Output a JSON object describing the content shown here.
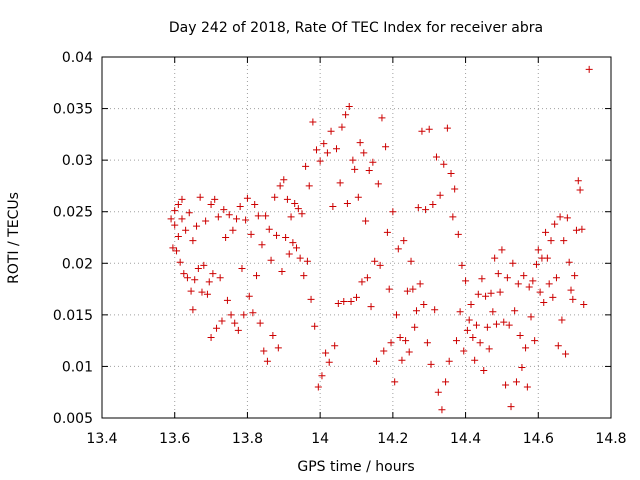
{
  "chart_data": {
    "type": "scatter",
    "title": "Day 242 of 2018, Rate Of TEC Index for receiver abra",
    "xlabel": "GPS time / hours",
    "ylabel": "ROTI / TECUs",
    "xlim": [
      13.4,
      14.8
    ],
    "ylim": [
      0.005,
      0.04
    ],
    "xticks": [
      13.4,
      13.6,
      13.8,
      14.0,
      14.2,
      14.4,
      14.6,
      14.8
    ],
    "xtick_labels": [
      "13.4",
      "13.6",
      "13.8",
      "14",
      "14.2",
      "14.4",
      "14.6",
      "14.8"
    ],
    "yticks": [
      0.005,
      0.01,
      0.015,
      0.02,
      0.025,
      0.03,
      0.035,
      0.04
    ],
    "ytick_labels": [
      "0.005",
      "0.01",
      "0.015",
      "0.02",
      "0.025",
      "0.03",
      "0.035",
      "0.04"
    ],
    "grid": true,
    "marker": "+",
    "color": "#cc0000",
    "series": [
      {
        "name": "abra",
        "points": [
          [
            13.59,
            0.0243
          ],
          [
            13.595,
            0.0215
          ],
          [
            13.6,
            0.0251
          ],
          [
            13.6,
            0.0237
          ],
          [
            13.605,
            0.0212
          ],
          [
            13.61,
            0.0257
          ],
          [
            13.61,
            0.0226
          ],
          [
            13.615,
            0.0201
          ],
          [
            13.62,
            0.0262
          ],
          [
            13.62,
            0.0243
          ],
          [
            13.625,
            0.019
          ],
          [
            13.63,
            0.0232
          ],
          [
            13.635,
            0.0186
          ],
          [
            13.64,
            0.0249
          ],
          [
            13.645,
            0.0173
          ],
          [
            13.65,
            0.0222
          ],
          [
            13.65,
            0.0155
          ],
          [
            13.655,
            0.0184
          ],
          [
            13.66,
            0.0236
          ],
          [
            13.665,
            0.0195
          ],
          [
            13.67,
            0.0264
          ],
          [
            13.675,
            0.0172
          ],
          [
            13.68,
            0.0198
          ],
          [
            13.685,
            0.0241
          ],
          [
            13.69,
            0.017
          ],
          [
            13.695,
            0.0182
          ],
          [
            13.7,
            0.0257
          ],
          [
            13.7,
            0.0128
          ],
          [
            13.705,
            0.019
          ],
          [
            13.71,
            0.0262
          ],
          [
            13.715,
            0.0137
          ],
          [
            13.72,
            0.0245
          ],
          [
            13.725,
            0.0186
          ],
          [
            13.73,
            0.0144
          ],
          [
            13.735,
            0.0252
          ],
          [
            13.74,
            0.0225
          ],
          [
            13.745,
            0.0164
          ],
          [
            13.75,
            0.0247
          ],
          [
            13.755,
            0.015
          ],
          [
            13.76,
            0.0232
          ],
          [
            13.765,
            0.0142
          ],
          [
            13.77,
            0.0243
          ],
          [
            13.775,
            0.0135
          ],
          [
            13.78,
            0.0255
          ],
          [
            13.785,
            0.0195
          ],
          [
            13.79,
            0.015
          ],
          [
            13.795,
            0.0242
          ],
          [
            13.8,
            0.0263
          ],
          [
            13.805,
            0.0168
          ],
          [
            13.81,
            0.0228
          ],
          [
            13.815,
            0.0152
          ],
          [
            13.82,
            0.0257
          ],
          [
            13.825,
            0.0188
          ],
          [
            13.83,
            0.0246
          ],
          [
            13.835,
            0.0142
          ],
          [
            13.84,
            0.0218
          ],
          [
            13.845,
            0.0115
          ],
          [
            13.85,
            0.0246
          ],
          [
            13.855,
            0.0105
          ],
          [
            13.86,
            0.0233
          ],
          [
            13.865,
            0.0203
          ],
          [
            13.87,
            0.013
          ],
          [
            13.875,
            0.0264
          ],
          [
            13.88,
            0.0227
          ],
          [
            13.885,
            0.0118
          ],
          [
            13.89,
            0.0275
          ],
          [
            13.895,
            0.0192
          ],
          [
            13.9,
            0.0281
          ],
          [
            13.905,
            0.0225
          ],
          [
            13.91,
            0.0262
          ],
          [
            13.915,
            0.0209
          ],
          [
            13.92,
            0.0245
          ],
          [
            13.925,
            0.022
          ],
          [
            13.93,
            0.0258
          ],
          [
            13.935,
            0.0215
          ],
          [
            13.94,
            0.0253
          ],
          [
            13.945,
            0.0205
          ],
          [
            13.95,
            0.0248
          ],
          [
            13.955,
            0.0188
          ],
          [
            13.96,
            0.0294
          ],
          [
            13.965,
            0.0202
          ],
          [
            13.97,
            0.0275
          ],
          [
            13.975,
            0.0165
          ],
          [
            13.98,
            0.0337
          ],
          [
            13.985,
            0.0139
          ],
          [
            13.99,
            0.031
          ],
          [
            13.995,
            0.008
          ],
          [
            14.0,
            0.0299
          ],
          [
            14.005,
            0.0091
          ],
          [
            14.01,
            0.0316
          ],
          [
            14.015,
            0.0113
          ],
          [
            14.02,
            0.0307
          ],
          [
            14.025,
            0.0104
          ],
          [
            14.03,
            0.0328
          ],
          [
            14.035,
            0.0255
          ],
          [
            14.04,
            0.012
          ],
          [
            14.045,
            0.0311
          ],
          [
            14.05,
            0.0161
          ],
          [
            14.055,
            0.0278
          ],
          [
            14.06,
            0.0332
          ],
          [
            14.065,
            0.0163
          ],
          [
            14.07,
            0.0344
          ],
          [
            14.075,
            0.0258
          ],
          [
            14.08,
            0.0352
          ],
          [
            14.085,
            0.0163
          ],
          [
            14.09,
            0.03
          ],
          [
            14.095,
            0.0291
          ],
          [
            14.1,
            0.0167
          ],
          [
            14.105,
            0.0264
          ],
          [
            14.11,
            0.0317
          ],
          [
            14.115,
            0.0182
          ],
          [
            14.12,
            0.0307
          ],
          [
            14.125,
            0.0241
          ],
          [
            14.13,
            0.0186
          ],
          [
            14.135,
            0.029
          ],
          [
            14.14,
            0.0158
          ],
          [
            14.145,
            0.0298
          ],
          [
            14.15,
            0.0202
          ],
          [
            14.155,
            0.0105
          ],
          [
            14.16,
            0.0277
          ],
          [
            14.165,
            0.0198
          ],
          [
            14.17,
            0.0341
          ],
          [
            14.175,
            0.0115
          ],
          [
            14.18,
            0.0313
          ],
          [
            14.185,
            0.023
          ],
          [
            14.19,
            0.0175
          ],
          [
            14.195,
            0.0123
          ],
          [
            14.2,
            0.025
          ],
          [
            14.205,
            0.0085
          ],
          [
            14.21,
            0.015
          ],
          [
            14.215,
            0.0214
          ],
          [
            14.22,
            0.0128
          ],
          [
            14.225,
            0.0106
          ],
          [
            14.23,
            0.0222
          ],
          [
            14.235,
            0.0125
          ],
          [
            14.24,
            0.0173
          ],
          [
            14.245,
            0.0114
          ],
          [
            14.25,
            0.0202
          ],
          [
            14.255,
            0.0175
          ],
          [
            14.26,
            0.0138
          ],
          [
            14.265,
            0.0154
          ],
          [
            14.27,
            0.0254
          ],
          [
            14.275,
            0.018
          ],
          [
            14.28,
            0.0328
          ],
          [
            14.285,
            0.016
          ],
          [
            14.29,
            0.0252
          ],
          [
            14.295,
            0.0123
          ],
          [
            14.3,
            0.033
          ],
          [
            14.305,
            0.0102
          ],
          [
            14.31,
            0.0257
          ],
          [
            14.315,
            0.0155
          ],
          [
            14.32,
            0.0303
          ],
          [
            14.325,
            0.0075
          ],
          [
            14.33,
            0.0266
          ],
          [
            14.335,
            0.0058
          ],
          [
            14.34,
            0.0296
          ],
          [
            14.345,
            0.0085
          ],
          [
            14.35,
            0.0331
          ],
          [
            14.355,
            0.0105
          ],
          [
            14.36,
            0.0287
          ],
          [
            14.365,
            0.0245
          ],
          [
            14.37,
            0.0272
          ],
          [
            14.375,
            0.0125
          ],
          [
            14.38,
            0.0228
          ],
          [
            14.385,
            0.0153
          ],
          [
            14.39,
            0.0198
          ],
          [
            14.395,
            0.0115
          ],
          [
            14.4,
            0.0183
          ],
          [
            14.405,
            0.0135
          ],
          [
            14.41,
            0.0145
          ],
          [
            14.415,
            0.016
          ],
          [
            14.42,
            0.0128
          ],
          [
            14.425,
            0.0106
          ],
          [
            14.43,
            0.014
          ],
          [
            14.435,
            0.017
          ],
          [
            14.44,
            0.0123
          ],
          [
            14.445,
            0.0185
          ],
          [
            14.45,
            0.0096
          ],
          [
            14.455,
            0.0168
          ],
          [
            14.46,
            0.0138
          ],
          [
            14.465,
            0.0117
          ],
          [
            14.47,
            0.0171
          ],
          [
            14.475,
            0.0153
          ],
          [
            14.48,
            0.0205
          ],
          [
            14.485,
            0.0141
          ],
          [
            14.49,
            0.019
          ],
          [
            14.495,
            0.0172
          ],
          [
            14.5,
            0.0213
          ],
          [
            14.505,
            0.0143
          ],
          [
            14.51,
            0.0082
          ],
          [
            14.515,
            0.0186
          ],
          [
            14.52,
            0.014
          ],
          [
            14.525,
            0.0061
          ],
          [
            14.53,
            0.02
          ],
          [
            14.535,
            0.0154
          ],
          [
            14.54,
            0.0085
          ],
          [
            14.545,
            0.018
          ],
          [
            14.55,
            0.013
          ],
          [
            14.555,
            0.0099
          ],
          [
            14.56,
            0.0188
          ],
          [
            14.565,
            0.0118
          ],
          [
            14.57,
            0.008
          ],
          [
            14.575,
            0.0177
          ],
          [
            14.58,
            0.0148
          ],
          [
            14.585,
            0.0183
          ],
          [
            14.59,
            0.0125
          ],
          [
            14.595,
            0.0199
          ],
          [
            14.6,
            0.0213
          ],
          [
            14.605,
            0.0172
          ],
          [
            14.61,
            0.0205
          ],
          [
            14.615,
            0.0162
          ],
          [
            14.62,
            0.023
          ],
          [
            14.625,
            0.0205
          ],
          [
            14.63,
            0.018
          ],
          [
            14.635,
            0.0222
          ],
          [
            14.64,
            0.0167
          ],
          [
            14.645,
            0.0238
          ],
          [
            14.65,
            0.0186
          ],
          [
            14.655,
            0.012
          ],
          [
            14.66,
            0.0245
          ],
          [
            14.665,
            0.0145
          ],
          [
            14.67,
            0.0222
          ],
          [
            14.675,
            0.0112
          ],
          [
            14.68,
            0.0244
          ],
          [
            14.685,
            0.0201
          ],
          [
            14.69,
            0.0174
          ],
          [
            14.695,
            0.0165
          ],
          [
            14.7,
            0.0188
          ],
          [
            14.705,
            0.0232
          ],
          [
            14.71,
            0.028
          ],
          [
            14.715,
            0.0271
          ],
          [
            14.72,
            0.0233
          ],
          [
            14.725,
            0.016
          ],
          [
            14.74,
            0.0388
          ]
        ]
      }
    ]
  }
}
